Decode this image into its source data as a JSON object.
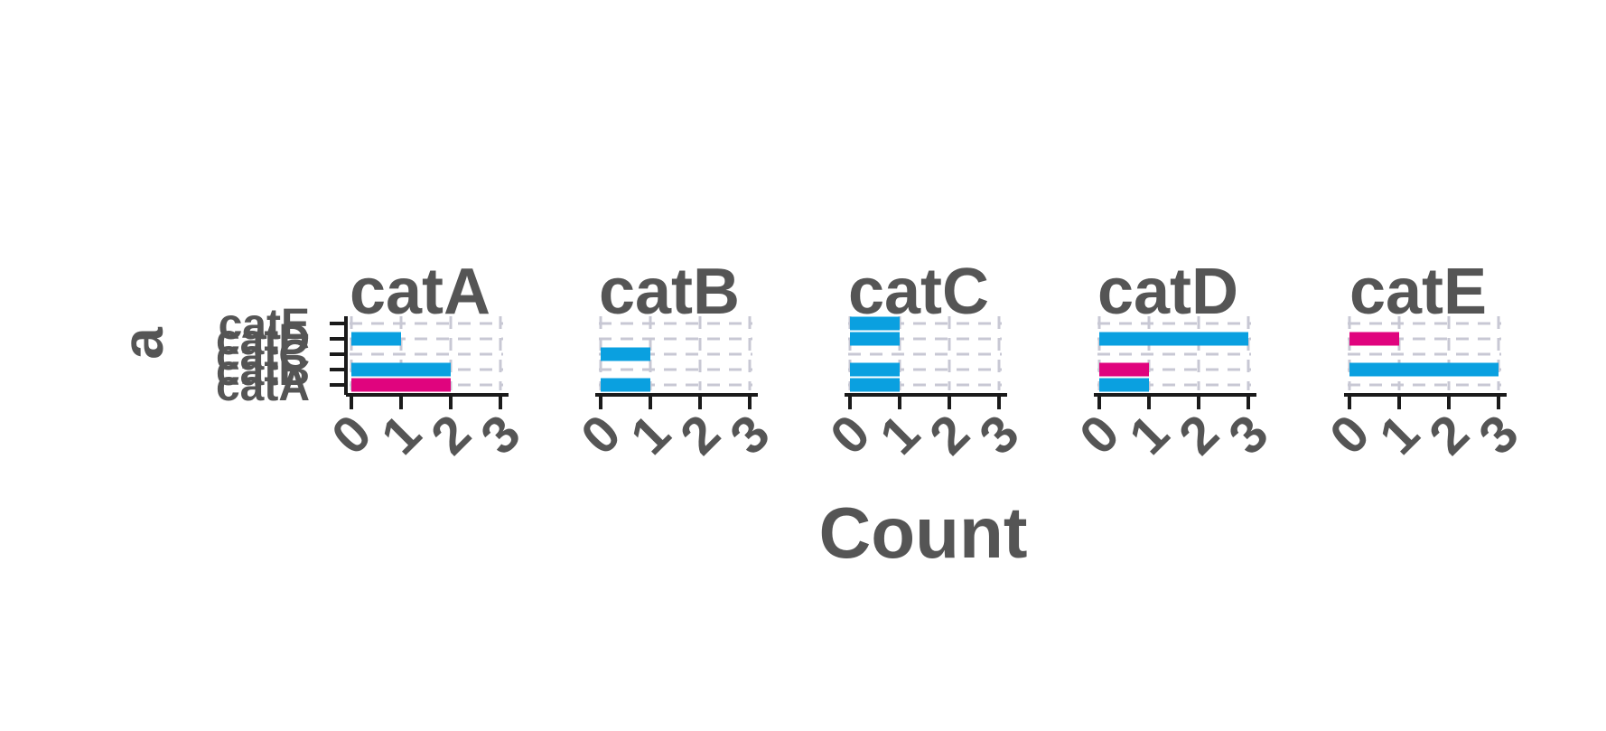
{
  "chart_data": {
    "type": "bar",
    "orientation": "horizontal",
    "layout": "facets",
    "xlabel": "Count",
    "ylabel": "a",
    "xlim": [
      0,
      3
    ],
    "x_ticks": [
      "0",
      "1",
      "2",
      "3"
    ],
    "y_categories": [
      "catA",
      "catB",
      "catC",
      "catD",
      "catE"
    ],
    "grid": true,
    "colors": {
      "blue": "#0aa0e0",
      "magenta": "#e0047e"
    },
    "facets": [
      {
        "title": "catA",
        "bars": [
          {
            "category": "catA",
            "value": 2,
            "color": "magenta"
          },
          {
            "category": "catB",
            "value": 2,
            "color": "blue"
          },
          {
            "category": "catD",
            "value": 1,
            "color": "blue"
          }
        ]
      },
      {
        "title": "catB",
        "bars": [
          {
            "category": "catA",
            "value": 1,
            "color": "blue"
          },
          {
            "category": "catC",
            "value": 1,
            "color": "blue"
          }
        ]
      },
      {
        "title": "catC",
        "bars": [
          {
            "category": "catA",
            "value": 1,
            "color": "blue"
          },
          {
            "category": "catB",
            "value": 1,
            "color": "blue"
          },
          {
            "category": "catD",
            "value": 1,
            "color": "blue"
          },
          {
            "category": "catE",
            "value": 1,
            "color": "blue"
          }
        ]
      },
      {
        "title": "catD",
        "bars": [
          {
            "category": "catA",
            "value": 1,
            "color": "blue"
          },
          {
            "category": "catB",
            "value": 1,
            "color": "magenta"
          },
          {
            "category": "catD",
            "value": 3,
            "color": "blue"
          }
        ]
      },
      {
        "title": "catE",
        "bars": [
          {
            "category": "catB",
            "value": 3,
            "color": "blue"
          },
          {
            "category": "catD",
            "value": 1,
            "color": "magenta"
          }
        ]
      }
    ]
  }
}
